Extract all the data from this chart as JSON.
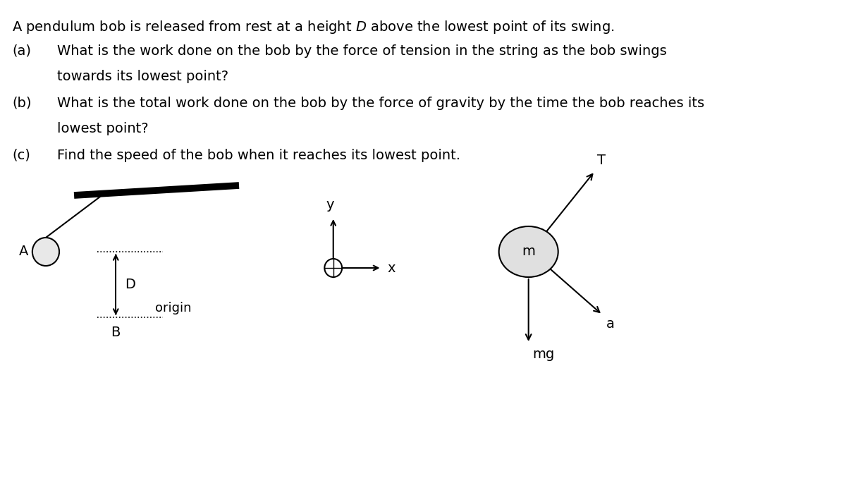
{
  "bg_color": "#ffffff",
  "text_color": "#000000",
  "font_size_main": 14,
  "font_size_labels": 13,
  "qa": "(a)",
  "qb": "(b)",
  "qc": "(c)",
  "qa_text1": "What is the work done on the bob by the force of tension in the string as the bob swings",
  "qa_text2": "towards its lowest point?",
  "qb_text1": "What is the total work done on the bob by the force of gravity by the time the bob reaches its",
  "qb_text2": "lowest point?",
  "qc_text": "Find the speed of the bob when it reaches its lowest point.",
  "title_part1": "A pendulum bob is released from rest at a height ",
  "title_part2": " above the lowest point of its swing.",
  "title_italic": "D"
}
